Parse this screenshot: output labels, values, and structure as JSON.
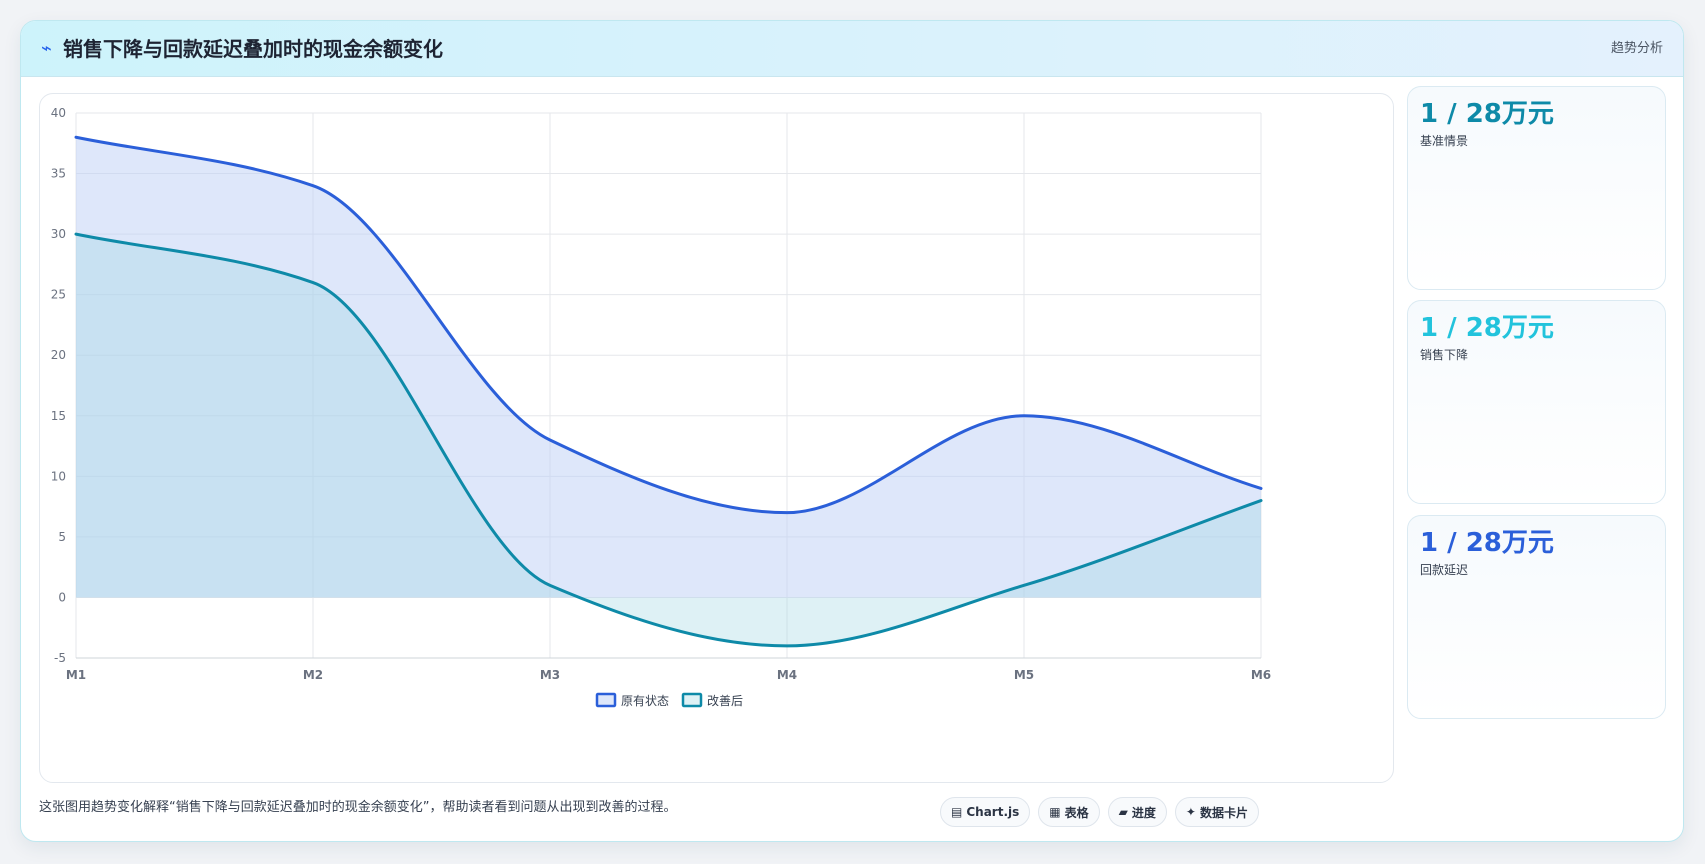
{
  "header": {
    "icon": "⌁",
    "title": "销售下降与回款延迟叠加时的现金余额变化",
    "tag": "趋势分析"
  },
  "stats": [
    {
      "value": "1 / 28万元",
      "label": "基准情景",
      "color": "#0e8aa8"
    },
    {
      "value": "1 / 28万元",
      "label": "销售下降",
      "color": "#22c3dc"
    },
    {
      "value": "1 / 28万元",
      "label": "回款延迟",
      "color": "#2b5fd9"
    }
  ],
  "footer": {
    "note": "这张图用趋势变化解释“销售下降与回款延迟叠加时的现金余额变化”，帮助读者看到问题从出现到改善的过程。",
    "pills": [
      {
        "icon": "▤",
        "label": "Chart.js"
      },
      {
        "icon": "▦",
        "label": "表格"
      },
      {
        "icon": "▰",
        "label": "进度"
      },
      {
        "icon": "✦",
        "label": "数据卡片"
      }
    ]
  },
  "chart_data": {
    "type": "area",
    "categories": [
      "M1",
      "M2",
      "M3",
      "M4",
      "M5",
      "M6"
    ],
    "series": [
      {
        "name": "原有状态",
        "values": [
          38,
          34,
          13,
          7,
          15,
          9
        ],
        "color": "#2b5fd9",
        "fill": "rgba(190,208,245,0.5)"
      },
      {
        "name": "改善后",
        "values": [
          30,
          26,
          1,
          -4,
          1,
          8
        ],
        "color": "#0e8aa8",
        "fill": "rgba(160,214,226,0.35)"
      }
    ],
    "ylim": [
      -5,
      40
    ],
    "yticks": [
      -5,
      0,
      5,
      10,
      15,
      20,
      25,
      30,
      35,
      40
    ],
    "grid": true,
    "legend": "bottom"
  }
}
